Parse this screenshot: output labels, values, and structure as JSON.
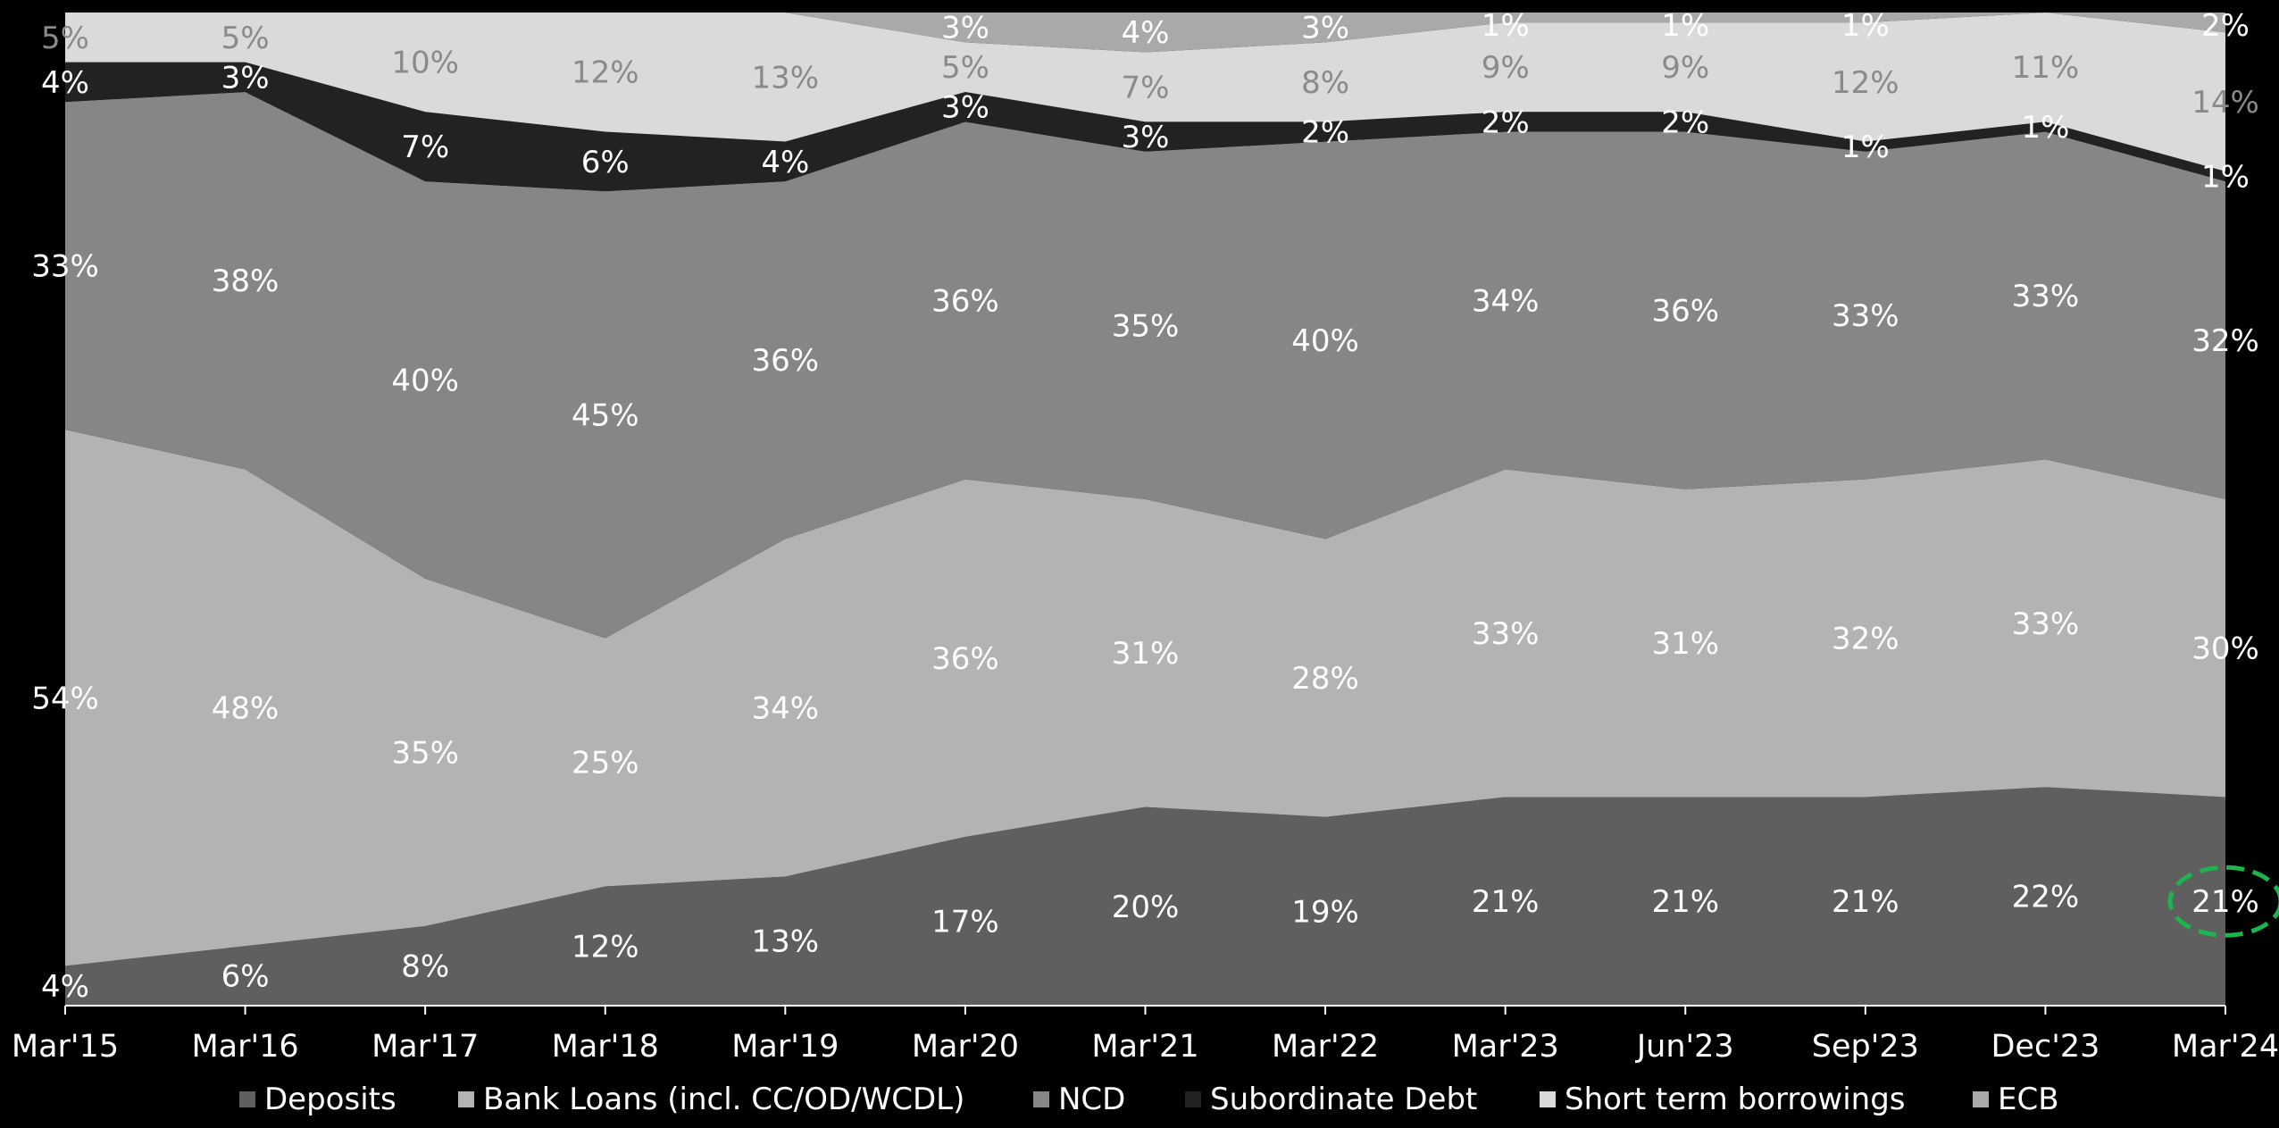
{
  "chart_data": {
    "type": "area",
    "stacked": true,
    "normalized_percent": true,
    "categories": [
      "Mar'15",
      "Mar'16",
      "Mar'17",
      "Mar'18",
      "Mar'19",
      "Mar'20",
      "Mar'21",
      "Mar'22",
      "Mar'23",
      "Jun'23",
      "Sep'23",
      "Dec'23",
      "Mar'24"
    ],
    "series": [
      {
        "name": "Deposits",
        "color": "#5f5f5f",
        "label_color": "#ffffff",
        "values": [
          4,
          6,
          8,
          12,
          13,
          17,
          20,
          19,
          21,
          21,
          21,
          22,
          21
        ],
        "labels": [
          "4%",
          "6%",
          "8%",
          "12%",
          "13%",
          "17%",
          "20%",
          "19%",
          "21%",
          "21%",
          "21%",
          "22%",
          "21%"
        ]
      },
      {
        "name": "Bank Loans (incl. CC/OD/WCDL)",
        "color": "#b3b3b3",
        "label_color": "#ffffff",
        "values": [
          54,
          48,
          35,
          25,
          34,
          36,
          31,
          28,
          33,
          31,
          32,
          33,
          30
        ],
        "labels": [
          "54%",
          "48%",
          "35%",
          "25%",
          "34%",
          "36%",
          "31%",
          "28%",
          "33%",
          "31%",
          "32%",
          "33%",
          "30%"
        ]
      },
      {
        "name": "NCD",
        "color": "#868686",
        "label_color": "#ffffff",
        "values": [
          33,
          38,
          40,
          45,
          36,
          36,
          35,
          40,
          34,
          36,
          33,
          33,
          32
        ],
        "labels": [
          "33%",
          "38%",
          "40%",
          "45%",
          "36%",
          "36%",
          "35%",
          "40%",
          "34%",
          "36%",
          "33%",
          "33%",
          "32%"
        ]
      },
      {
        "name": "Subordinate Debt",
        "color": "#222222",
        "label_color": "#ffffff",
        "values": [
          4,
          3,
          7,
          6,
          4,
          3,
          3,
          2,
          2,
          2,
          1,
          1,
          1
        ],
        "labels": [
          "4%",
          "3%",
          "7%",
          "6%",
          "4%",
          "3%",
          "3%",
          "2%",
          "2%",
          "2%",
          "1%",
          "1%",
          "1%"
        ]
      },
      {
        "name": "Short term borrowings",
        "color": "#dadada",
        "label_color": "#8a8a8a",
        "values": [
          5,
          5,
          10,
          12,
          13,
          5,
          7,
          8,
          9,
          9,
          12,
          11,
          14
        ],
        "labels": [
          "5%",
          "5%",
          "10%",
          "12%",
          "13%",
          "5%",
          "7%",
          "8%",
          "9%",
          "9%",
          "12%",
          "11%",
          "14%"
        ]
      },
      {
        "name": "ECB",
        "color": "#a9a9a9",
        "label_color": "#ffffff",
        "values": [
          0,
          0,
          0,
          0,
          0,
          3,
          4,
          3,
          1,
          1,
          1,
          0,
          2
        ],
        "labels": [
          "",
          "",
          "",
          "",
          "",
          "3%",
          "4%",
          "3%",
          "1%",
          "1%",
          "1%",
          "",
          "2%"
        ]
      }
    ],
    "ylim": [
      0,
      100
    ],
    "legend_position": "bottom",
    "grid": false,
    "highlight": {
      "category": "Mar'24",
      "series": "Deposits",
      "style": "dashed-ellipse",
      "color": "#1db34f"
    }
  }
}
